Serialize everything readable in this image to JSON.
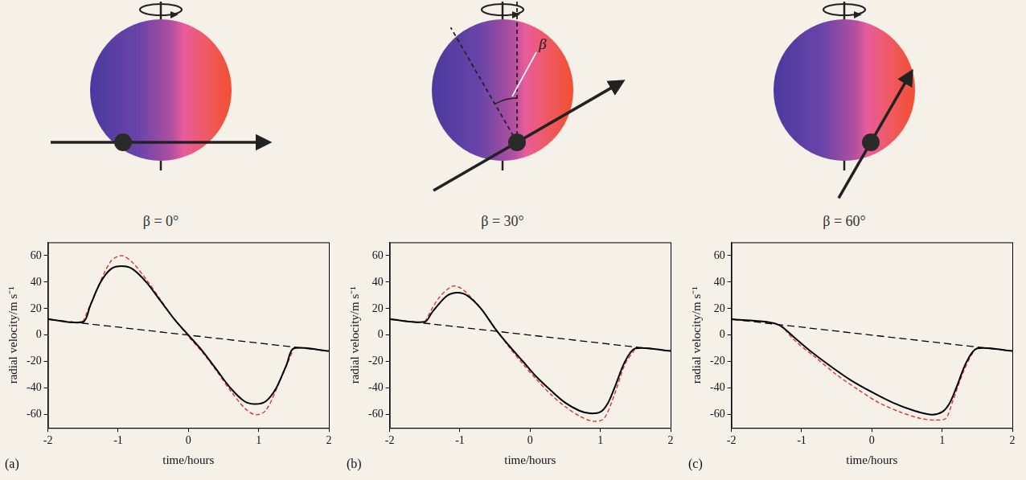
{
  "diagrams": [
    {
      "caption": "β = 0°",
      "beta": 0
    },
    {
      "caption": "β = 30°",
      "beta": 30,
      "angle_label": "β"
    },
    {
      "caption": "β = 60°",
      "beta": 60
    }
  ],
  "chart_data": [
    {
      "type": "line",
      "panel": "(a)",
      "x_label": "time/hours",
      "y_label": "radial velocity/m s⁻¹",
      "xlim": [
        -2,
        2
      ],
      "xticks": [
        -2,
        -1,
        0,
        1,
        2
      ],
      "ylim": [
        -70,
        70
      ],
      "yticks": [
        -60,
        -40,
        -20,
        0,
        20,
        40,
        60
      ],
      "grid": false,
      "series": [
        {
          "color": "#000000",
          "line_style": "solid",
          "x": [
            -2,
            -1.5,
            -1.4,
            -1.25,
            -1.1,
            -0.95,
            -0.8,
            -0.6,
            -0.4,
            -0.2,
            0,
            0.2,
            0.4,
            0.6,
            0.8,
            0.95,
            1.1,
            1.25,
            1.4,
            1.5,
            2
          ],
          "values": [
            12,
            10,
            22,
            40,
            50,
            52,
            50,
            40,
            26,
            12,
            0,
            -12,
            -26,
            -40,
            -50,
            -52,
            -50,
            -40,
            -22,
            -10,
            -12
          ]
        },
        {
          "color": "#e8202a",
          "line_style": "dashed",
          "x": [
            -1.5,
            -1.3,
            -1.1,
            -0.95,
            -0.8,
            -0.6,
            -0.4,
            -0.2,
            0,
            0.2,
            0.4,
            0.6,
            0.8,
            0.95,
            1.1,
            1.3,
            1.5
          ],
          "values": [
            10,
            35,
            56,
            60,
            55,
            42,
            27,
            12,
            -1,
            -13,
            -27,
            -42,
            -55,
            -60,
            -57,
            -35,
            -10
          ]
        },
        {
          "color": "#000000",
          "line_style": "long_dashed",
          "x": [
            -2,
            2
          ],
          "values": [
            12,
            -12
          ]
        }
      ]
    },
    {
      "type": "line",
      "panel": "(b)",
      "x_label": "time/hours",
      "y_label": "radial velocity/m s⁻¹",
      "xlim": [
        -2,
        2
      ],
      "xticks": [
        -2,
        -1,
        0,
        1,
        2
      ],
      "ylim": [
        -70,
        70
      ],
      "yticks": [
        -60,
        -40,
        -20,
        0,
        20,
        40,
        60
      ],
      "grid": false,
      "series": [
        {
          "color": "#000000",
          "line_style": "solid",
          "x": [
            -2,
            -1.5,
            -1.4,
            -1.2,
            -1.05,
            -0.9,
            -0.7,
            -0.5,
            -0.3,
            -0.1,
            0.1,
            0.3,
            0.5,
            0.7,
            0.85,
            1.0,
            1.1,
            1.2,
            1.35,
            1.5,
            2
          ],
          "values": [
            12,
            10,
            17,
            29,
            32,
            30,
            20,
            5,
            -8,
            -20,
            -32,
            -42,
            -51,
            -57,
            -59,
            -58,
            -52,
            -40,
            -20,
            -10,
            -12
          ]
        },
        {
          "color": "#e8202a",
          "line_style": "dashed",
          "x": [
            -1.5,
            -1.3,
            -1.1,
            -0.95,
            -0.7,
            -0.5,
            -0.3,
            -0.1,
            0.1,
            0.3,
            0.5,
            0.7,
            0.9,
            1.05,
            1.2,
            1.35,
            1.5
          ],
          "values": [
            10,
            28,
            37,
            34,
            20,
            5,
            -9,
            -22,
            -34,
            -45,
            -54,
            -61,
            -65,
            -63,
            -45,
            -22,
            -10
          ]
        },
        {
          "color": "#000000",
          "line_style": "long_dashed",
          "x": [
            -2,
            2
          ],
          "values": [
            12,
            -12
          ]
        }
      ]
    },
    {
      "type": "line",
      "panel": "(c)",
      "x_label": "time/hours",
      "y_label": "radial velocity/m s⁻¹",
      "xlim": [
        -2,
        2
      ],
      "xticks": [
        -2,
        -1,
        0,
        1,
        2
      ],
      "ylim": [
        -70,
        70
      ],
      "yticks": [
        -60,
        -40,
        -20,
        0,
        20,
        40,
        60
      ],
      "grid": false,
      "series": [
        {
          "color": "#000000",
          "line_style": "solid",
          "x": [
            -2,
            -1.5,
            -1.3,
            -1.1,
            -0.9,
            -0.6,
            -0.3,
            0,
            0.3,
            0.6,
            0.85,
            1.0,
            1.1,
            1.2,
            1.35,
            1.5,
            2
          ],
          "values": [
            12,
            10,
            7,
            -2,
            -11,
            -23,
            -34,
            -43,
            -51,
            -57,
            -60,
            -58,
            -52,
            -40,
            -20,
            -10,
            -12
          ]
        },
        {
          "color": "#e8202a",
          "line_style": "dashed",
          "x": [
            -1.3,
            -1.1,
            -0.8,
            -0.5,
            -0.2,
            0.1,
            0.4,
            0.7,
            0.9,
            1.05,
            1.15,
            1.3,
            1.45,
            1.5
          ],
          "values": [
            8,
            -4,
            -17,
            -30,
            -41,
            -51,
            -58,
            -63,
            -64,
            -63,
            -50,
            -28,
            -12,
            -10
          ]
        },
        {
          "color": "#000000",
          "line_style": "long_dashed",
          "x": [
            -2,
            2
          ],
          "values": [
            12,
            -12
          ]
        }
      ]
    }
  ]
}
